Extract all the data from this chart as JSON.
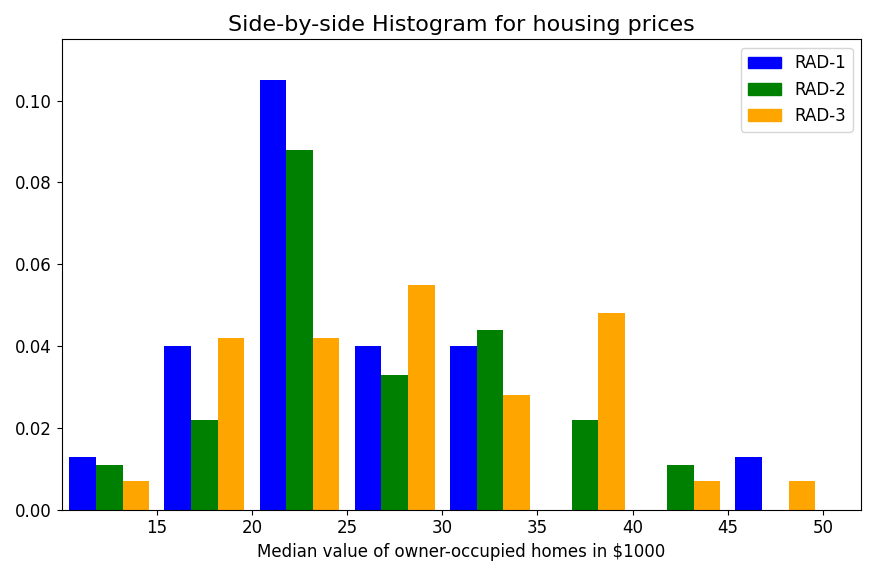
{
  "title": "Side-by-side Histogram for housing prices",
  "xlabel": "Median value of owner-occupied homes in $1000",
  "ylabel": "",
  "bin_centers": [
    12.5,
    17.5,
    22.5,
    27.5,
    32.5,
    37.5,
    42.5,
    47.5
  ],
  "rad1": [
    0.013,
    0.04,
    0.105,
    0.04,
    0.04,
    0.0,
    0.0,
    0.013
  ],
  "rad2": [
    0.011,
    0.022,
    0.088,
    0.033,
    0.044,
    0.022,
    0.011,
    0.0
  ],
  "rad3": [
    0.007,
    0.042,
    0.042,
    0.055,
    0.028,
    0.048,
    0.007,
    0.007
  ],
  "colors": [
    "blue",
    "green",
    "orange"
  ],
  "labels": [
    "RAD-1",
    "RAD-2",
    "RAD-3"
  ],
  "ylim": [
    0,
    0.115
  ],
  "xlim": [
    10,
    52
  ],
  "bar_width": 1.4,
  "title_fontsize": 16,
  "legend_fontsize": 12,
  "tick_fontsize": 12,
  "xlabel_fontsize": 12,
  "xticks": [
    15,
    20,
    25,
    30,
    35,
    40,
    45,
    50
  ]
}
